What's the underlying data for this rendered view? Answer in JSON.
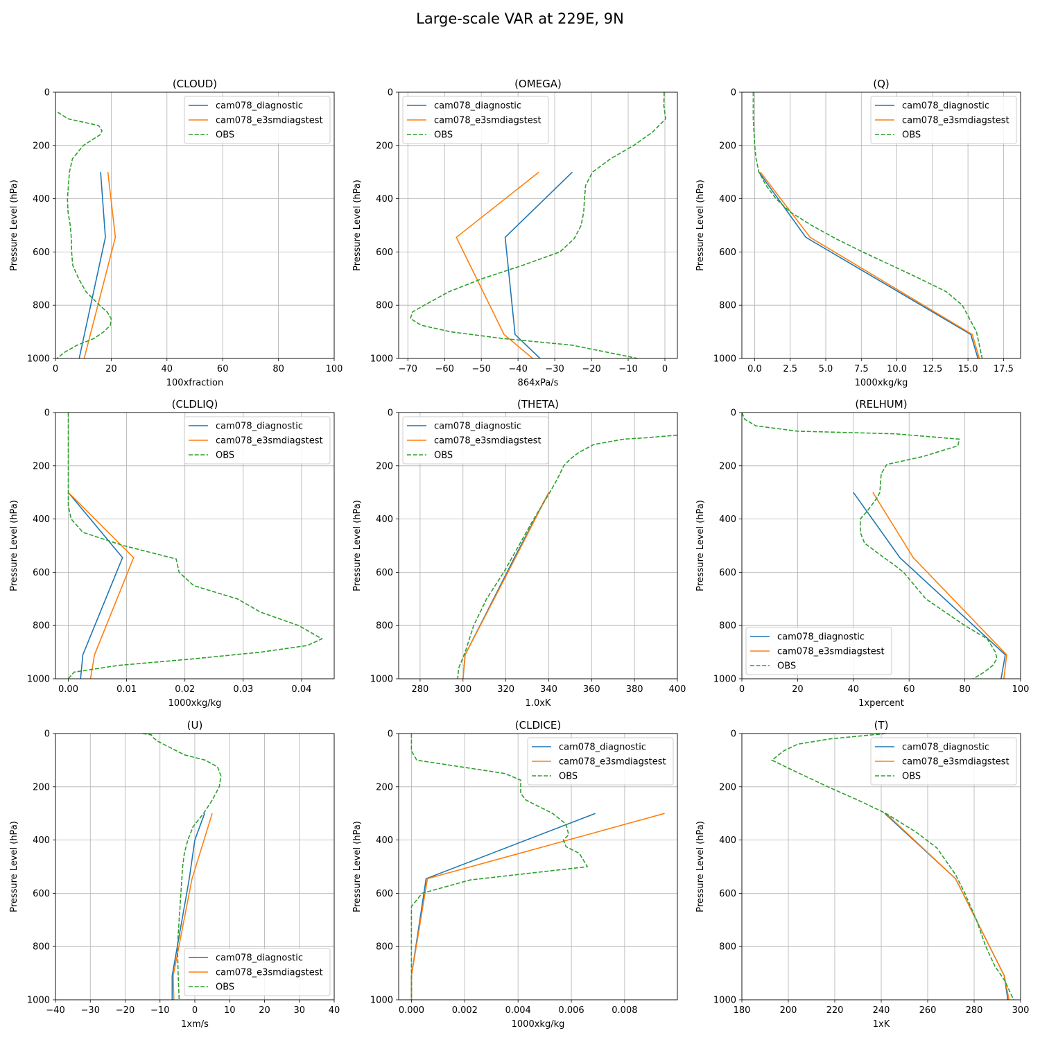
{
  "figure": {
    "suptitle": "Large-scale VAR at 229E, 9N"
  },
  "colors": {
    "diag": "#1f77b4",
    "test": "#ff7f0e",
    "obs": "#2ca02c",
    "grid": "#b0b0b0"
  },
  "chart_data": [
    {
      "type": "line",
      "title": "(CLOUD)",
      "xlabel": "100xfraction",
      "ylabel": "Pressure Level (hPa)",
      "xlim": [
        0,
        100
      ],
      "ylim": [
        1000,
        0
      ],
      "grid": true,
      "legend": "upper right",
      "xticks": [
        0,
        20,
        40,
        60,
        80,
        100
      ],
      "xtick_labels": [
        "0",
        "20",
        "40",
        "60",
        "80",
        "100"
      ],
      "yticks": [
        0,
        200,
        400,
        600,
        800,
        1000
      ],
      "series": [
        {
          "name": "cam078_diagnostic",
          "style": "solid",
          "x": [
            16.2,
            17.9,
            8.5
          ],
          "y": [
            300,
            545,
            1000
          ]
        },
        {
          "name": "cam078_e3smdiagstest",
          "style": "solid",
          "x": [
            18.8,
            21.5,
            10.3
          ],
          "y": [
            300,
            545,
            1000
          ]
        },
        {
          "name": "OBS",
          "style": "dashed",
          "x": [
            0.8,
            4.5,
            15.5,
            16.7,
            16,
            10,
            6.1,
            5,
            4.3,
            4.5,
            5.3,
            5.7,
            5.8,
            6.2,
            8.3,
            11,
            15.8,
            18.5,
            20,
            19.7,
            17.3,
            13.8,
            7.8,
            3.5,
            0.5
          ],
          "y": [
            75,
            100,
            125,
            145,
            160,
            200,
            250,
            300,
            400,
            450,
            500,
            550,
            600,
            650,
            700,
            750,
            800,
            825,
            850,
            875,
            900,
            925,
            950,
            975,
            1000
          ]
        }
      ]
    },
    {
      "type": "line",
      "title": "(OMEGA)",
      "xlabel": "864xPa/s",
      "ylabel": "Pressure Level (hPa)",
      "xlim": [
        -72.5,
        3.4
      ],
      "ylim": [
        1000,
        0
      ],
      "grid": true,
      "legend": "upper left",
      "xticks": [
        -70,
        -60,
        -50,
        -40,
        -30,
        -20,
        -10,
        0
      ],
      "xtick_labels": [
        "−70",
        "−60",
        "−50",
        "−40",
        "−30",
        "−20",
        "−10",
        "0"
      ],
      "yticks": [
        0,
        200,
        400,
        600,
        800,
        1000
      ],
      "series": [
        {
          "name": "cam078_diagnostic",
          "style": "solid",
          "x": [
            -25.2,
            -43.5,
            -40.8,
            -34
          ],
          "y": [
            300,
            545,
            910,
            1000
          ]
        },
        {
          "name": "cam078_e3smdiagstest",
          "style": "solid",
          "x": [
            -34.3,
            -56.8,
            -43.8,
            -36
          ],
          "y": [
            300,
            545,
            910,
            1000
          ]
        },
        {
          "name": "OBS",
          "style": "dashed",
          "x": [
            -0.2,
            -0.3,
            0.2,
            -3.4,
            -8.5,
            -14.8,
            -19.7,
            -21.6,
            -21.9,
            -22.1,
            -22.8,
            -24.7,
            -28.6,
            -38.7,
            -49.7,
            -58.9,
            -65.5,
            -68.7,
            -69.3,
            -66.4,
            -58.3,
            -44.2,
            -25.3,
            -7.4
          ],
          "y": [
            0,
            50,
            100,
            150,
            200,
            250,
            300,
            350,
            400,
            450,
            500,
            550,
            600,
            650,
            700,
            750,
            800,
            825,
            850,
            875,
            900,
            925,
            950,
            1000
          ]
        }
      ]
    },
    {
      "type": "line",
      "title": "(Q)",
      "xlabel": "1000xkg/kg",
      "ylabel": "Pressure Level (hPa)",
      "xlim": [
        -0.9,
        18.7
      ],
      "ylim": [
        1000,
        0
      ],
      "grid": true,
      "legend": "upper right",
      "xticks": [
        0,
        2.5,
        5,
        7.5,
        10,
        12.5,
        15,
        17.5
      ],
      "xtick_labels": [
        "0.0",
        "2.5",
        "5.0",
        "7.5",
        "10.0",
        "12.5",
        "15.0",
        "17.5"
      ],
      "yticks": [
        0,
        200,
        400,
        600,
        800,
        1000
      ],
      "series": [
        {
          "name": "cam078_diagnostic",
          "style": "solid",
          "x": [
            0.3,
            3.6,
            15.2,
            15.7
          ],
          "y": [
            300,
            545,
            910,
            1000
          ]
        },
        {
          "name": "cam078_e3smdiagstest",
          "style": "solid",
          "x": [
            0.4,
            3.9,
            15.3,
            15.8
          ],
          "y": [
            300,
            545,
            910,
            1000
          ]
        },
        {
          "name": "OBS",
          "style": "dashed",
          "x": [
            -0.1,
            -0.1,
            0,
            0.1,
            0.3,
            0.8,
            1.5,
            2.5,
            4,
            5.7,
            7.6,
            9.6,
            11.6,
            13.5,
            14.6,
            15.6,
            16
          ],
          "y": [
            0,
            100,
            200,
            250,
            300,
            350,
            400,
            450,
            500,
            550,
            600,
            650,
            700,
            750,
            800,
            900,
            1000
          ]
        }
      ]
    },
    {
      "type": "line",
      "title": "(CLDLIQ)",
      "xlabel": "1000xkg/kg",
      "ylabel": "Pressure Level (hPa)",
      "xlim": [
        -0.0022,
        0.0456
      ],
      "ylim": [
        1000,
        0
      ],
      "grid": true,
      "legend": "upper right",
      "xticks": [
        0,
        0.01,
        0.02,
        0.03,
        0.04
      ],
      "xtick_labels": [
        "0.00",
        "0.01",
        "0.02",
        "0.03",
        "0.04"
      ],
      "yticks": [
        0,
        200,
        400,
        600,
        800,
        1000
      ],
      "series": [
        {
          "name": "cam078_diagnostic",
          "style": "solid",
          "x": [
            0,
            0.0093,
            0.0025,
            0.0021
          ],
          "y": [
            300,
            545,
            910,
            1000
          ]
        },
        {
          "name": "cam078_e3smdiagstest",
          "style": "solid",
          "x": [
            0,
            0.0112,
            0.0045,
            0.0038
          ],
          "y": [
            300,
            545,
            910,
            1000
          ]
        },
        {
          "name": "OBS",
          "style": "dashed",
          "x": [
            0,
            0,
            0,
            0,
            0.0005,
            0.0025,
            0.0095,
            0.0185,
            0.019,
            0.0215,
            0.029,
            0.033,
            0.0395,
            0.0435,
            0.041,
            0.033,
            0.0215,
            0.0085,
            0.001,
            0
          ],
          "y": [
            0,
            200,
            300,
            350,
            400,
            450,
            500,
            550,
            600,
            650,
            700,
            750,
            800,
            850,
            875,
            900,
            925,
            950,
            975,
            1000
          ]
        }
      ]
    },
    {
      "type": "line",
      "title": "(THETA)",
      "xlabel": "1.0xK",
      "ylabel": "Pressure Level (hPa)",
      "xlim": [
        270,
        400
      ],
      "ylim": [
        1000,
        0
      ],
      "grid": true,
      "legend": "upper left",
      "xticks": [
        280,
        300,
        320,
        340,
        360,
        380,
        400
      ],
      "xtick_labels": [
        "280",
        "300",
        "320",
        "340",
        "360",
        "380",
        "400"
      ],
      "yticks": [
        0,
        200,
        400,
        600,
        800,
        1000
      ],
      "series": [
        {
          "name": "cam078_diagnostic",
          "style": "solid",
          "x": [
            340,
            324,
            301,
            300
          ],
          "y": [
            300,
            545,
            910,
            1000
          ]
        },
        {
          "name": "cam078_e3smdiagstest",
          "style": "solid",
          "x": [
            340,
            324.5,
            301,
            300
          ],
          "y": [
            300,
            545,
            910,
            1000
          ]
        },
        {
          "name": "OBS",
          "style": "dashed",
          "x": [
            400,
            385,
            375,
            361,
            354,
            350,
            347,
            344,
            340.5,
            333,
            326,
            319,
            311,
            305,
            301,
            299,
            298,
            297.5
          ],
          "y": [
            85,
            95,
            100,
            120,
            150,
            175,
            200,
            250,
            300,
            400,
            500,
            600,
            700,
            800,
            900,
            940,
            960,
            1000
          ]
        }
      ]
    },
    {
      "type": "line",
      "title": "(RELHUM)",
      "xlabel": "1xpercent",
      "ylabel": "Pressure Level (hPa)",
      "xlim": [
        0,
        100
      ],
      "ylim": [
        1000,
        0
      ],
      "grid": true,
      "legend": "lower left",
      "xticks": [
        0,
        20,
        40,
        60,
        80,
        100
      ],
      "xtick_labels": [
        "0",
        "20",
        "40",
        "60",
        "80",
        "100"
      ],
      "yticks": [
        0,
        200,
        400,
        600,
        800,
        1000
      ],
      "series": [
        {
          "name": "cam078_diagnostic",
          "style": "solid",
          "x": [
            40,
            56.7,
            94.5,
            93
          ],
          "y": [
            300,
            545,
            910,
            1000
          ]
        },
        {
          "name": "cam078_e3smdiagstest",
          "style": "solid",
          "x": [
            47,
            61.5,
            95,
            94
          ],
          "y": [
            300,
            545,
            910,
            1000
          ]
        },
        {
          "name": "OBS",
          "style": "dashed",
          "x": [
            0,
            1,
            5,
            20,
            55,
            78,
            77.5,
            65,
            52,
            50,
            49.5,
            48.5,
            45,
            42.5,
            42.5,
            44,
            49,
            55,
            58,
            66,
            80,
            88,
            91,
            91.5,
            90,
            87,
            83
          ],
          "y": [
            0,
            25,
            50,
            70,
            80,
            100,
            125,
            165,
            195,
            230,
            300,
            320,
            370,
            400,
            450,
            490,
            530,
            575,
            600,
            700,
            800,
            850,
            900,
            925,
            950,
            975,
            1000
          ]
        }
      ]
    },
    {
      "type": "line",
      "title": "(U)",
      "xlabel": "1xm/s",
      "ylabel": "Pressure Level (hPa)",
      "xlim": [
        -40,
        40
      ],
      "ylim": [
        1000,
        0
      ],
      "grid": true,
      "legend": "lower right",
      "xticks": [
        -40,
        -30,
        -20,
        -10,
        0,
        10,
        20,
        30,
        40
      ],
      "xtick_labels": [
        "−40",
        "−30",
        "−20",
        "−10",
        "0",
        "10",
        "20",
        "30",
        "40"
      ],
      "yticks": [
        0,
        200,
        400,
        600,
        800,
        1000
      ],
      "series": [
        {
          "name": "cam078_diagnostic",
          "style": "solid",
          "x": [
            2.8,
            0,
            -1.6,
            -6.5,
            -6.5
          ],
          "y": [
            300,
            400,
            545,
            910,
            1000
          ]
        },
        {
          "name": "cam078_e3smdiagstest",
          "style": "solid",
          "x": [
            5,
            -0.8,
            -6.2,
            -6
          ],
          "y": [
            300,
            545,
            910,
            1000
          ]
        },
        {
          "name": "OBS",
          "style": "dashed",
          "x": [
            -15,
            -12.5,
            -12,
            -10.5,
            -6,
            -3,
            3,
            6.5,
            7.5,
            7,
            5,
            2.5,
            -0.5,
            -2,
            -3,
            -3.5,
            -4,
            -4.5,
            -5,
            -4.8,
            -4.5
          ],
          "y": [
            0,
            5,
            15,
            30,
            60,
            80,
            100,
            125,
            160,
            200,
            250,
            300,
            350,
            400,
            450,
            500,
            600,
            700,
            800,
            900,
            1000
          ]
        }
      ]
    },
    {
      "type": "line",
      "title": "(CLDICE)",
      "xlabel": "1000xkg/kg",
      "ylabel": "Pressure Level (hPa)",
      "xlim": [
        -0.00048,
        0.00998
      ],
      "ylim": [
        1000,
        0
      ],
      "grid": true,
      "legend": "upper right",
      "xticks": [
        0,
        0.002,
        0.004,
        0.006,
        0.008
      ],
      "xtick_labels": [
        "0.000",
        "0.002",
        "0.004",
        "0.006",
        "0.008"
      ],
      "yticks": [
        0,
        200,
        400,
        600,
        800,
        1000
      ],
      "series": [
        {
          "name": "cam078_diagnostic",
          "style": "solid",
          "x": [
            0.0069,
            0.00055,
            0,
            0
          ],
          "y": [
            300,
            545,
            910,
            1000
          ]
        },
        {
          "name": "cam078_e3smdiagstest",
          "style": "solid",
          "x": [
            0.0095,
            0.0006,
            0,
            0
          ],
          "y": [
            300,
            545,
            910,
            1000
          ]
        },
        {
          "name": "OBS",
          "style": "dashed",
          "x": [
            0,
            0,
            0.0002,
            0.0035,
            0.0041,
            0.0041,
            0.0043,
            0.0053,
            0.0058,
            0.0059,
            0.0057,
            0.0058,
            0.0063,
            0.0066,
            0.0022,
            0.0004,
            0,
            0
          ],
          "y": [
            0,
            65,
            100,
            150,
            175,
            225,
            250,
            300,
            340,
            380,
            400,
            425,
            450,
            500,
            550,
            600,
            650,
            1000
          ]
        }
      ]
    },
    {
      "type": "line",
      "title": "(T)",
      "xlabel": "1xK",
      "ylabel": "Pressure Level (hPa)",
      "xlim": [
        180,
        300
      ],
      "ylim": [
        1000,
        0
      ],
      "grid": true,
      "legend": "upper right",
      "xticks": [
        180,
        200,
        220,
        240,
        260,
        280,
        300
      ],
      "xtick_labels": [
        "180",
        "200",
        "220",
        "240",
        "260",
        "280",
        "300"
      ],
      "yticks": [
        0,
        200,
        400,
        600,
        800,
        1000
      ],
      "series": [
        {
          "name": "cam078_diagnostic",
          "style": "solid",
          "x": [
            241.5,
            272,
            293,
            294.5
          ],
          "y": [
            300,
            545,
            910,
            1000
          ]
        },
        {
          "name": "cam078_e3smdiagstest",
          "style": "solid",
          "x": [
            242,
            272,
            293,
            295
          ],
          "y": [
            300,
            545,
            910,
            1000
          ]
        },
        {
          "name": "OBS",
          "style": "dashed",
          "x": [
            242,
            218,
            204,
            198,
            193,
            200,
            217,
            230,
            242,
            255,
            264,
            272,
            276,
            281,
            285,
            289,
            293,
            297
          ],
          "y": [
            0,
            20,
            40,
            65,
            100,
            130,
            200,
            250,
            300,
            370,
            430,
            530,
            600,
            700,
            800,
            875,
            925,
            1000
          ]
        }
      ]
    }
  ]
}
